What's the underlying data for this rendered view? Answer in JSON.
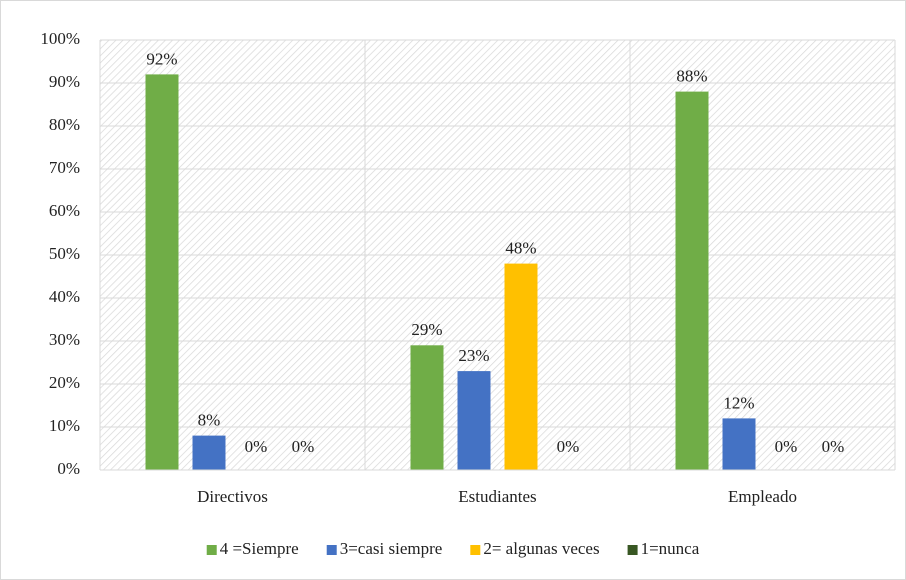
{
  "chart_data": {
    "type": "bar",
    "categories": [
      "Directivos",
      "Estudiantes",
      "Empleado"
    ],
    "series": [
      {
        "name": "4 =Siempre",
        "color": "#70ad47",
        "values": [
          92,
          29,
          88
        ],
        "value_labels": [
          "92%",
          "29%",
          "88%"
        ]
      },
      {
        "name": "3=casi siempre",
        "color": "#4472c4",
        "values": [
          8,
          23,
          12
        ],
        "value_labels": [
          "8%",
          "23%",
          "12%"
        ]
      },
      {
        "name": "2= algunas veces",
        "color": "#ffc000",
        "values": [
          0,
          48,
          0
        ],
        "value_labels": [
          "0%",
          "48%",
          "0%"
        ]
      },
      {
        "name": "1=nunca",
        "color": "#385723",
        "values": [
          0,
          0,
          0
        ],
        "value_labels": [
          "0%",
          "0%",
          "0%"
        ]
      }
    ],
    "ylim": [
      0,
      100
    ],
    "yticks": [
      {
        "value": 0,
        "label": "0%"
      },
      {
        "value": 10,
        "label": "10%"
      },
      {
        "value": 20,
        "label": "20%"
      },
      {
        "value": 30,
        "label": "30%"
      },
      {
        "value": 40,
        "label": "40%"
      },
      {
        "value": 50,
        "label": "50%"
      },
      {
        "value": 60,
        "label": "60%"
      },
      {
        "value": 70,
        "label": "70%"
      },
      {
        "value": 80,
        "label": "80%"
      },
      {
        "value": 90,
        "label": "90%"
      },
      {
        "value": 100,
        "label": "100%"
      }
    ],
    "grid": true,
    "legend": "bottom"
  }
}
